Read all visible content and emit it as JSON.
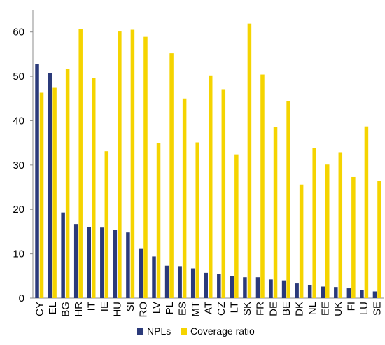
{
  "chart_data": {
    "type": "bar",
    "categories": [
      "CY",
      "EL",
      "BG",
      "HR",
      "IT",
      "IE",
      "HU",
      "SI",
      "RO",
      "LV",
      "PL",
      "ES",
      "MT",
      "AT",
      "CZ",
      "LT",
      "SK",
      "FR",
      "DE",
      "BE",
      "DK",
      "NL",
      "EE",
      "UK",
      "FI",
      "LU",
      "SE"
    ],
    "series": [
      {
        "name": "NPLs",
        "color": "#2b3a7a",
        "values": [
          52.8,
          50.7,
          19.3,
          16.7,
          16.0,
          15.9,
          15.4,
          14.8,
          11.1,
          9.4,
          7.3,
          7.2,
          6.7,
          5.7,
          5.4,
          5.0,
          4.7,
          4.7,
          4.2,
          4.0,
          3.3,
          3.0,
          2.6,
          2.5,
          2.2,
          1.8,
          1.5
        ]
      },
      {
        "name": "Coverage ratio",
        "color": "#f5d400",
        "values": [
          46.3,
          47.4,
          51.6,
          60.6,
          49.6,
          33.1,
          60.1,
          60.5,
          58.9,
          34.9,
          55.2,
          45.0,
          35.1,
          50.2,
          47.1,
          32.4,
          61.9,
          50.4,
          38.5,
          44.4,
          25.6,
          33.8,
          30.1,
          32.9,
          27.3,
          38.7,
          26.4
        ]
      }
    ],
    "ylim": [
      0,
      65
    ],
    "yticks": [
      0,
      10,
      20,
      30,
      40,
      50,
      60
    ],
    "grid": false,
    "legend": "bottom"
  }
}
